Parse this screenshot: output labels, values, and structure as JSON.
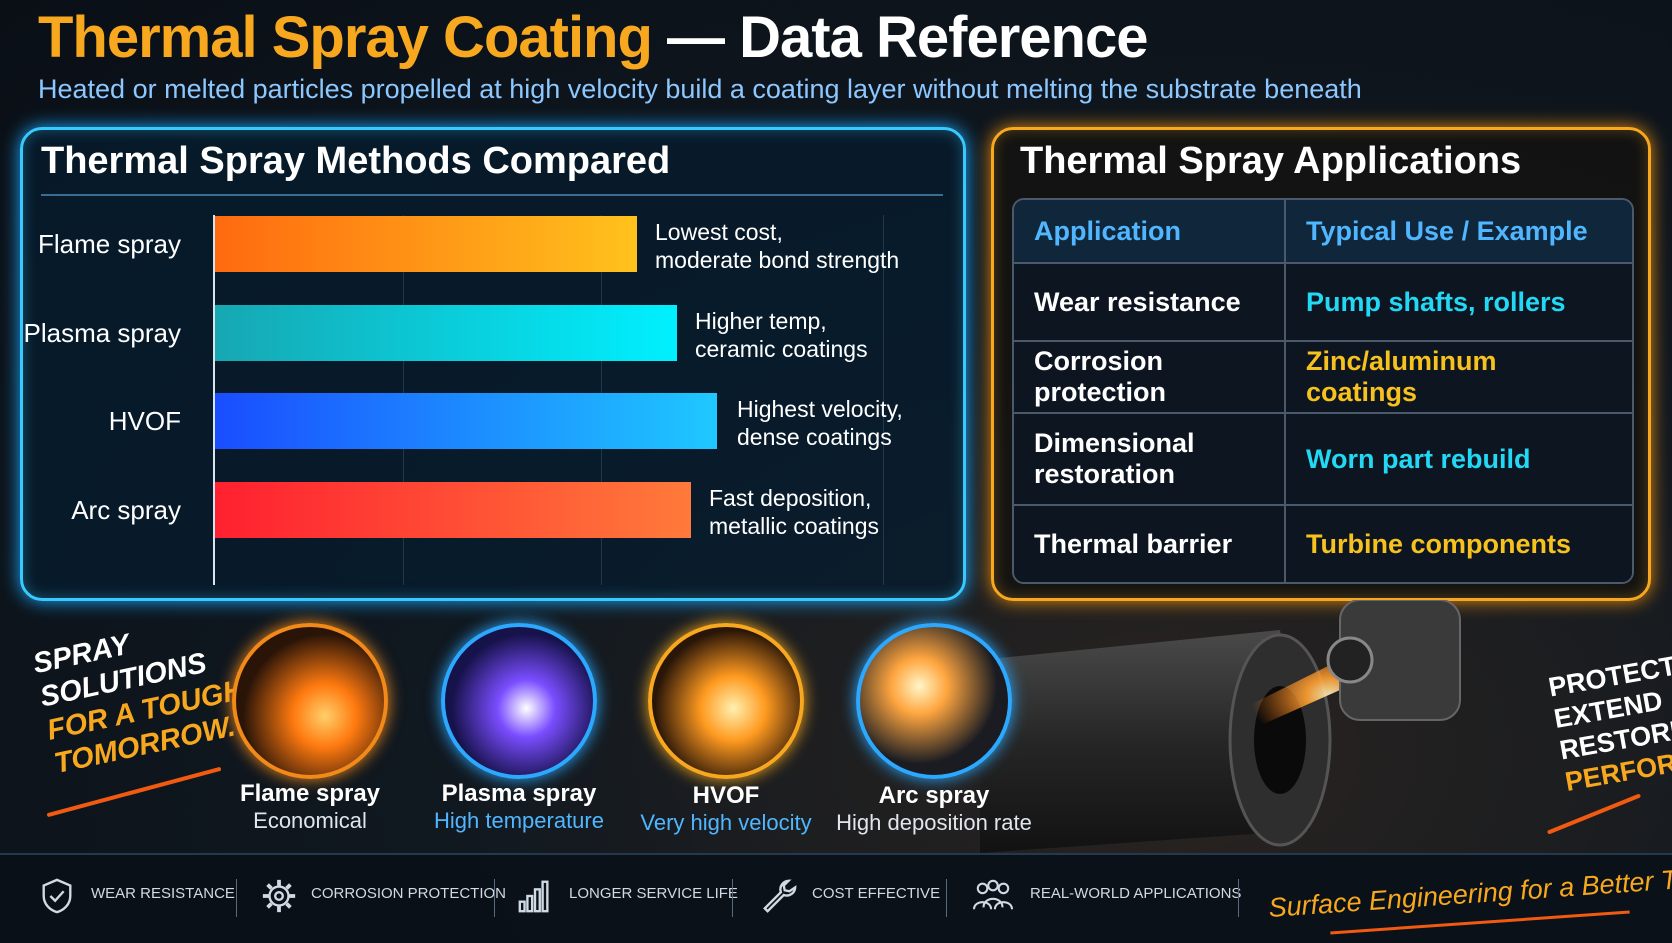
{
  "header": {
    "title_highlight": "Thermal Spray Coating",
    "title_rest": "— Data Reference",
    "subtitle": "Heated or melted particles propelled at high velocity build a coating layer without melting the substrate beneath"
  },
  "methods_panel": {
    "title": "Thermal Spray Methods Compared",
    "bars": [
      {
        "label": "Flame spray",
        "note_line1": "Lowest cost,",
        "note_line2": "moderate bond strength",
        "relative_value": 0.62
      },
      {
        "label": "Plasma spray",
        "note_line1": "Higher temp,",
        "note_line2": "ceramic coatings",
        "relative_value": 0.68
      },
      {
        "label": "HVOF",
        "note_line1": "Highest velocity,",
        "note_line2": "dense coatings",
        "relative_value": 0.74
      },
      {
        "label": "Arc spray",
        "note_line1": "Fast deposition,",
        "note_line2": "metallic coatings",
        "relative_value": 0.7
      }
    ]
  },
  "applications_panel": {
    "title": "Thermal Spray Applications",
    "headers": [
      "Application",
      "Typical Use / Example"
    ],
    "rows": [
      {
        "application": "Wear resistance",
        "example": "Pump shafts, rollers"
      },
      {
        "application": "Corrosion protection",
        "example": "Zinc/aluminum coatings"
      },
      {
        "application": "Dimensional restoration",
        "example": "Worn part rebuild"
      },
      {
        "application": "Thermal barrier",
        "example": "Turbine components"
      }
    ]
  },
  "slogan_left": {
    "line1": "SPRAY",
    "line2": "SOLUTIONS",
    "line3": "FOR A TOUGHER",
    "line4": "TOMORROW."
  },
  "methods_icons": [
    {
      "name": "Flame spray",
      "sub": "Economical"
    },
    {
      "name": "Plasma spray",
      "sub": "High temperature"
    },
    {
      "name": "HVOF",
      "sub": "Very high velocity"
    },
    {
      "name": "Arc spray",
      "sub": "High deposition rate"
    }
  ],
  "slogan_right": {
    "line1": "PROTECT",
    "line2": "EXTEND",
    "line3": "RESTORE",
    "line4": "PERFORM"
  },
  "footer": {
    "items": [
      {
        "label": "WEAR RESISTANCE",
        "icon": "shield-check-icon"
      },
      {
        "label": "CORROSION PROTECTION",
        "icon": "gear-icon"
      },
      {
        "label": "LONGER SERVICE LIFE",
        "icon": "bar-chart-icon"
      },
      {
        "label": "COST EFFECTIVE",
        "icon": "wrench-icon"
      },
      {
        "label": "REAL-WORLD APPLICATIONS",
        "icon": "people-icon"
      }
    ],
    "tagline": "Surface Engineering for a Better Tomorrow."
  },
  "colors": {
    "accent_orange": "#f7a81e",
    "accent_cyan": "#38c9ff",
    "flame_bar": "#f7a81e",
    "plasma_bar": "#00e5ff",
    "hvof_bar": "#1e6dff",
    "arc_bar": "#ff3b2f"
  }
}
